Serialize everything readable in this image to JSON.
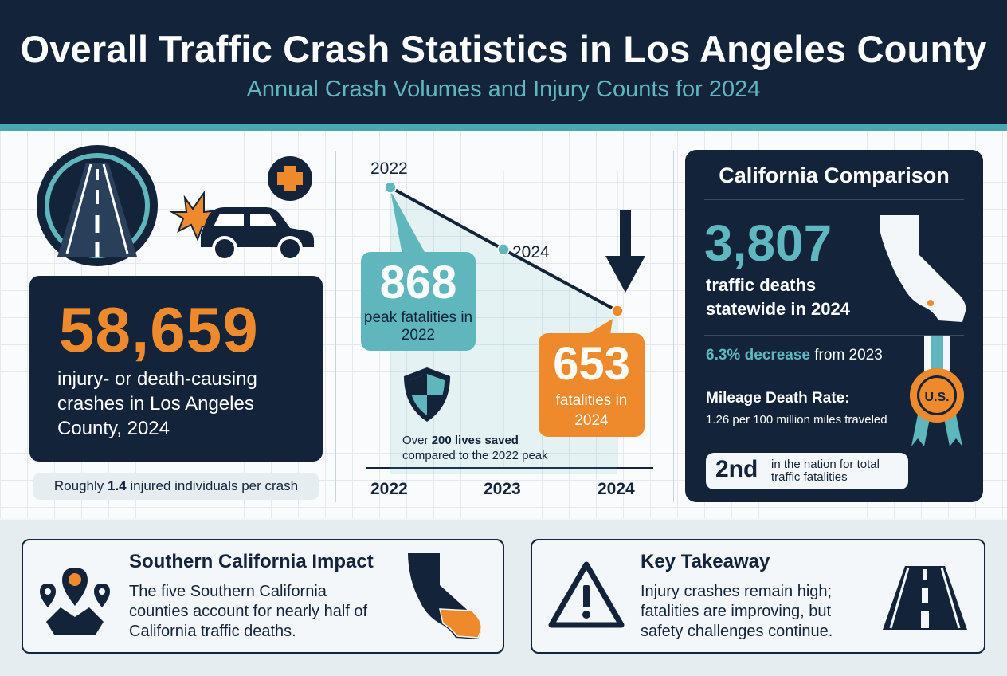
{
  "header": {
    "title": "Overall Traffic Crash Statistics in Los Angeles County",
    "subtitle": "Annual Crash Volumes and Injury Counts for 2024"
  },
  "left_panel": {
    "big_number": "58,659",
    "description": "injury- or death-causing crashes in Los Angeles County, 2024",
    "pill_prefix": "Roughly ",
    "pill_value": "1.4",
    "pill_suffix": " injured individuals per crash"
  },
  "chart_data": {
    "type": "line",
    "x": [
      "2022",
      "2023",
      "2024"
    ],
    "series": [
      {
        "values": [
          868,
          760,
          653
        ]
      }
    ],
    "point_labels": [
      "2022",
      "2024"
    ],
    "callouts": [
      {
        "value": "868",
        "text": "peak fatalities in 2022"
      },
      {
        "value": "653",
        "text": "fatalities in 2024"
      }
    ],
    "annotation": {
      "prefix": "Over ",
      "value": "200 lives saved",
      "suffix": "compared to the 2022 peak"
    }
  },
  "right_panel": {
    "title": "California Comparison",
    "big_number": "3,807",
    "description_line1": "traffic deaths",
    "description_line2": "statewide in 2024",
    "decrease": "6.3% decrease",
    "decrease_suffix": " from 2023",
    "rate_heading": "Mileage Death Rate:",
    "rate_text": "1.26 per 100 million miles traveled",
    "medal_text": "U.S.",
    "rank": "2nd",
    "rank_text": "in the nation for total traffic fatalities"
  },
  "bottom": {
    "card1": {
      "heading": "Southern California Impact",
      "text": "The five Southern California counties account for nearly half of California traffic deaths."
    },
    "card2": {
      "heading": "Key Takeaway",
      "text": "Injury crashes remain high; fatalities are improving, but safety challenges continue."
    }
  },
  "colors": {
    "navy": "#13233a",
    "teal": "#5fb6bd",
    "orange": "#ee8a2b"
  }
}
